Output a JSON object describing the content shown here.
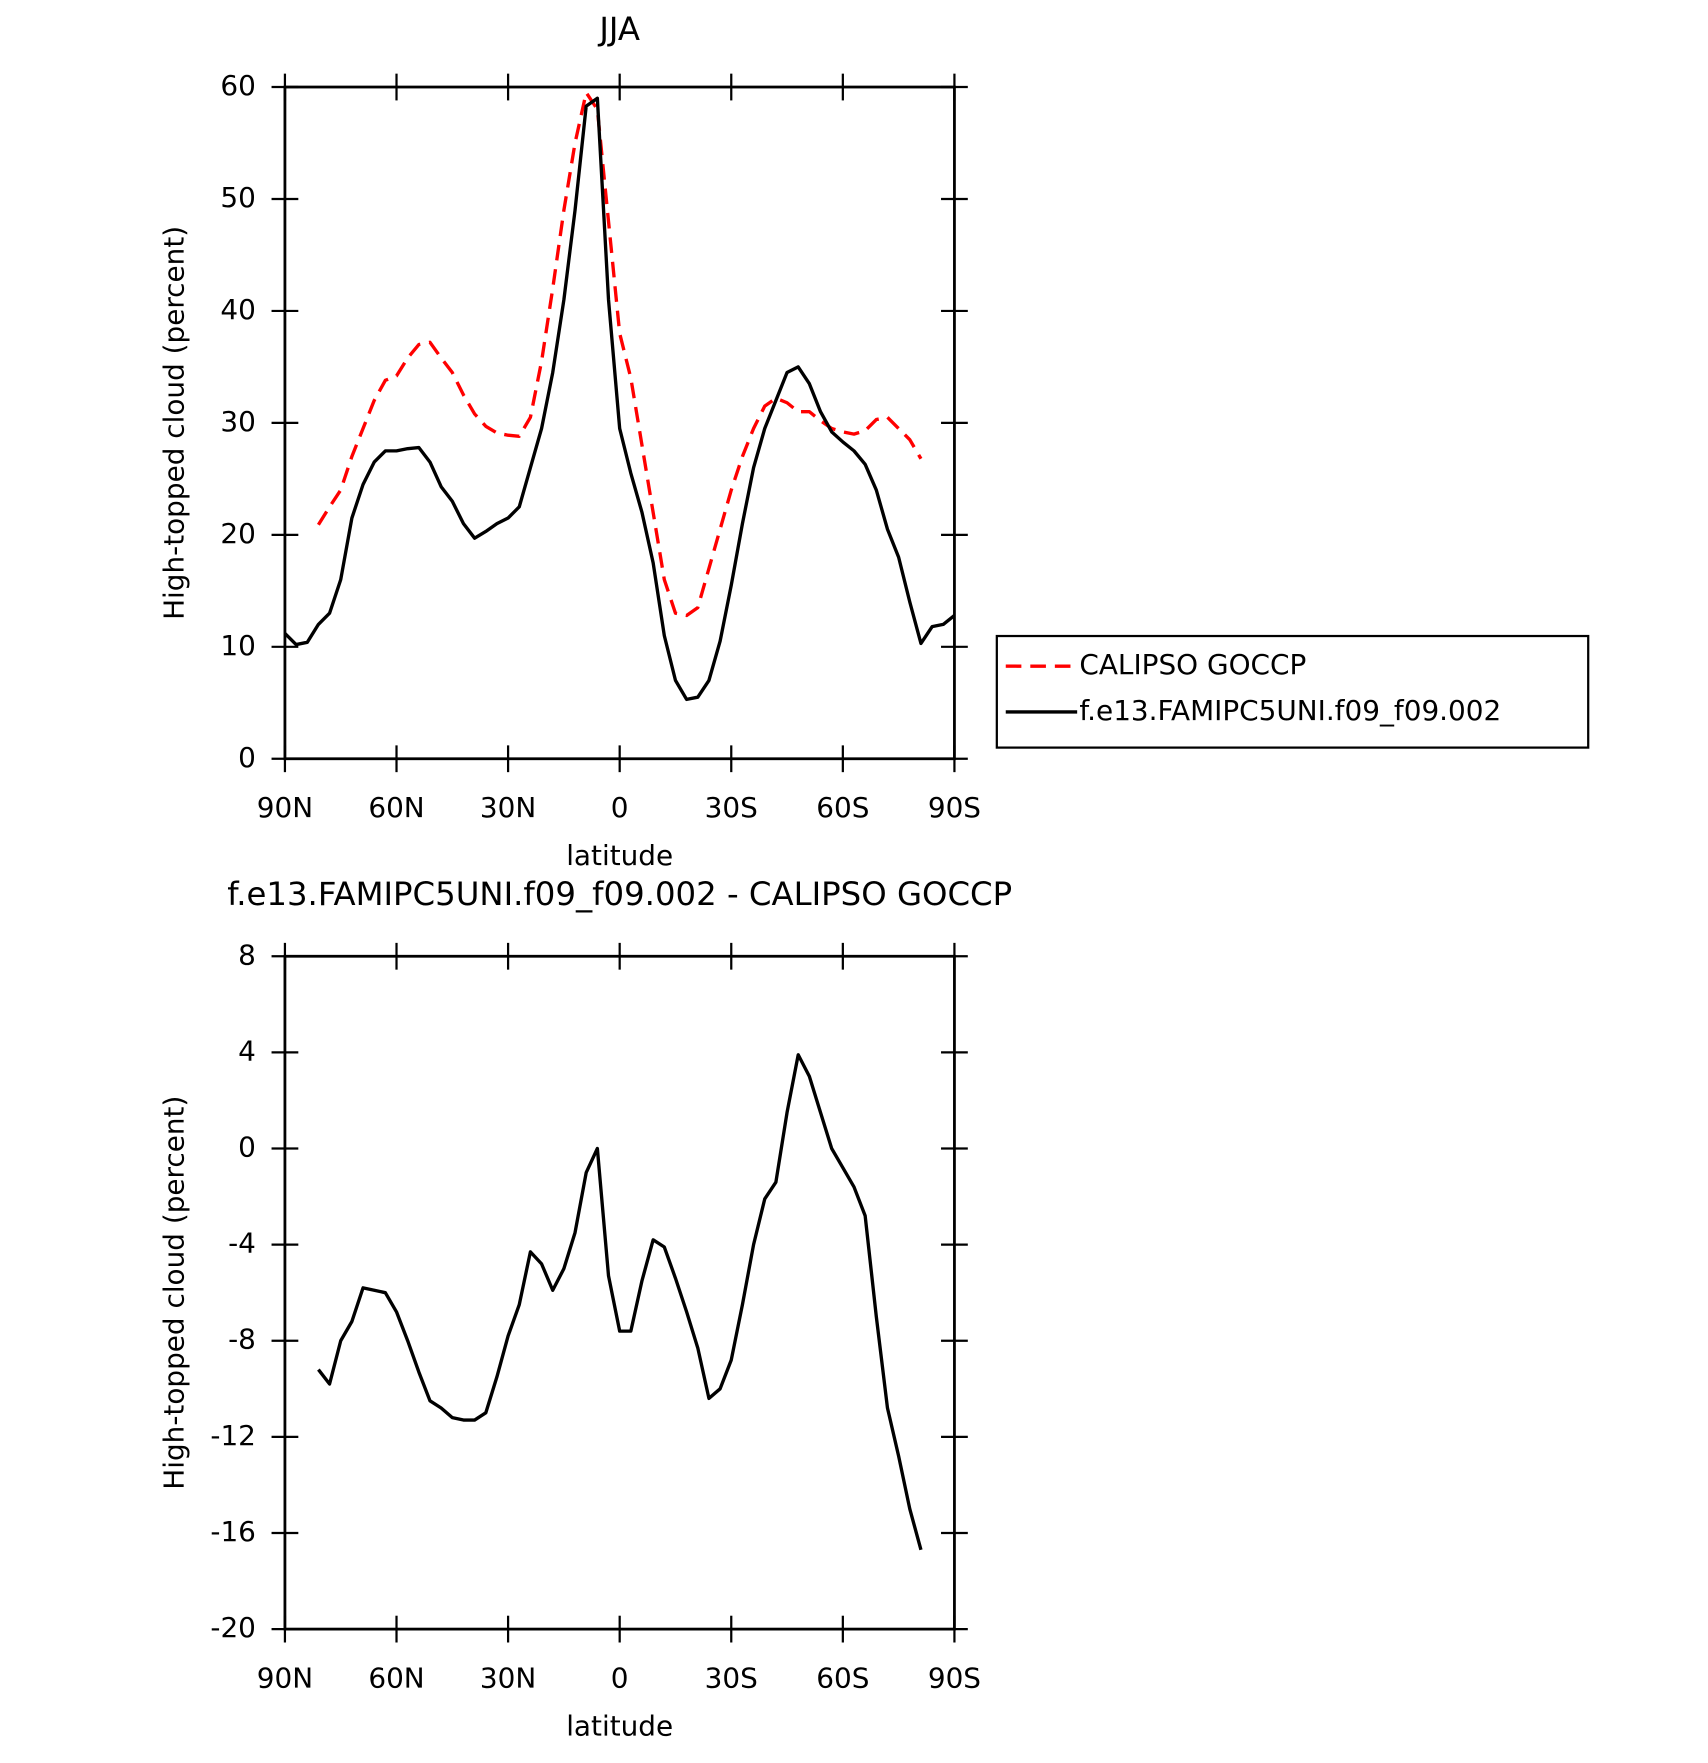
{
  "chart_data": [
    {
      "type": "line",
      "title": "JJA",
      "x_label": "latitude",
      "y_label": "High-topped cloud (percent)",
      "x": [
        90,
        87,
        84,
        81,
        78,
        75,
        72,
        69,
        66,
        63,
        60,
        57,
        54,
        51,
        48,
        45,
        42,
        39,
        36,
        33,
        30,
        27,
        24,
        21,
        18,
        15,
        12,
        9,
        6,
        3,
        0,
        -3,
        -6,
        -9,
        -12,
        -15,
        -18,
        -21,
        -24,
        -27,
        -30,
        -33,
        -36,
        -39,
        -42,
        -45,
        -48,
        -51,
        -54,
        -57,
        -60,
        -63,
        -66,
        -69,
        -72,
        -75,
        -78,
        -81,
        -84,
        -87,
        -90
      ],
      "series": [
        {
          "name": "CALIPSO GOCCP",
          "color": "#ff0000",
          "dash": true,
          "values": [
            null,
            null,
            null,
            20.9,
            22.5,
            24,
            27,
            29.5,
            32,
            33.8,
            34.2,
            35.8,
            37,
            37.2,
            35.8,
            34.5,
            32.5,
            30.8,
            29.7,
            29.1,
            28.9,
            28.8,
            30.5,
            35.5,
            42,
            49,
            55,
            59.5,
            58,
            48,
            38,
            34,
            28,
            22,
            16,
            13,
            12.8,
            13.5,
            17,
            20.5,
            24,
            27,
            29.5,
            31.5,
            32.2,
            31.8,
            31,
            31,
            30.2,
            29.5,
            29.2,
            29,
            29.3,
            30.3,
            30.5,
            29.5,
            28.5,
            26.8,
            null,
            null,
            null
          ]
        },
        {
          "name": "f.e13.FAMIPC5UNI.f09_f09.002",
          "color": "#000000",
          "dash": false,
          "values": [
            11.2,
            10.2,
            10.4,
            12,
            13,
            16,
            21.5,
            24.5,
            26.5,
            27.5,
            27.5,
            27.7,
            27.8,
            26.5,
            24.3,
            23,
            21,
            19.7,
            20.3,
            21,
            21.5,
            22.5,
            26,
            29.5,
            34.5,
            41,
            49,
            58.3,
            59,
            41,
            29.5,
            25.5,
            22,
            17.5,
            11,
            7,
            5.3,
            5.5,
            7,
            10.5,
            15.5,
            21,
            26,
            29.5,
            32,
            34.5,
            35,
            33.5,
            31,
            29.2,
            28.3,
            27.5,
            26.3,
            24,
            20.5,
            18,
            14,
            10.3,
            11.8,
            12,
            12.8
          ]
        }
      ],
      "xlim": [
        90,
        -90
      ],
      "xticks": [
        {
          "value": 90,
          "label": "90N"
        },
        {
          "value": 60,
          "label": "60N"
        },
        {
          "value": 30,
          "label": "30N"
        },
        0,
        {
          "value": -30,
          "label": "30S"
        },
        {
          "value": -60,
          "label": "60S"
        },
        {
          "value": -90,
          "label": "90S"
        }
      ],
      "ylim": [
        0,
        60
      ],
      "yticks": [
        0,
        10,
        20,
        30,
        40,
        50,
        60
      ],
      "legend": "right"
    },
    {
      "type": "line",
      "title": "f.e13.FAMIPC5UNI.f09_f09.002 - CALIPSO GOCCP",
      "x_label": "latitude",
      "y_label": "High-topped cloud (percent)",
      "x": [
        81,
        78,
        75,
        72,
        69,
        66,
        63,
        60,
        57,
        54,
        51,
        48,
        45,
        42,
        39,
        36,
        33,
        30,
        27,
        24,
        21,
        18,
        15,
        12,
        9,
        6,
        3,
        0,
        -3,
        -6,
        -9,
        -12,
        -15,
        -18,
        -21,
        -24,
        -27,
        -30,
        -33,
        -36,
        -39,
        -42,
        -45,
        -48,
        -51,
        -54,
        -57,
        -60,
        -63,
        -66,
        -69,
        -72,
        -75,
        -78,
        -81
      ],
      "series": [
        {
          "color": "#000000",
          "dash": false,
          "values": [
            -9.2,
            -9.8,
            -8,
            -7.2,
            -5.8,
            -5.9,
            -6,
            -6.8,
            -8,
            -9.3,
            -10.5,
            -10.8,
            -11.2,
            -11.3,
            -11.3,
            -11,
            -9.5,
            -7.8,
            -6.5,
            -4.3,
            -4.8,
            -5.9,
            -5,
            -3.5,
            -1,
            0,
            -5.3,
            -7.6,
            -7.6,
            -5.5,
            -3.8,
            -4.1,
            -5.4,
            -6.8,
            -8.3,
            -10.4,
            -10,
            -8.8,
            -6.5,
            -4,
            -2.1,
            -1.4,
            1.5,
            3.9,
            3,
            1.5,
            0,
            -0.8,
            -1.6,
            -2.8,
            -7,
            -10.8,
            -12.8,
            -15,
            -16.7
          ]
        }
      ],
      "xlim": [
        90,
        -90
      ],
      "xticks": [
        {
          "value": 90,
          "label": "90N"
        },
        {
          "value": 60,
          "label": "60N"
        },
        {
          "value": 30,
          "label": "30N"
        },
        0,
        {
          "value": -30,
          "label": "30S"
        },
        {
          "value": -60,
          "label": "60S"
        },
        {
          "value": -90,
          "label": "90S"
        }
      ],
      "ylim": [
        -20,
        8
      ],
      "yticks": [
        -20,
        -16,
        -12,
        -8,
        -4,
        0,
        4,
        8
      ]
    }
  ]
}
